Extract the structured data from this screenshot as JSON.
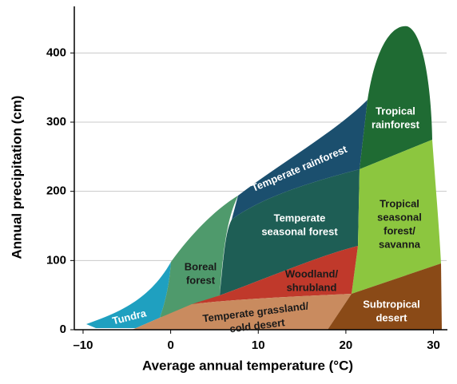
{
  "chart_data": {
    "type": "biome",
    "xlabel": "Average annual temperature (°C)",
    "ylabel": "Annual precipitation (cm)",
    "xlim": [
      -11,
      31.5
    ],
    "xticks": [
      {
        "value": -10,
        "label": "–10"
      },
      0,
      10,
      20,
      30
    ],
    "ylim": [
      0,
      465
    ],
    "yticks": [
      0,
      100,
      200,
      300,
      400
    ],
    "grid": true,
    "regions": [
      {
        "lines": [
          "Tundra"
        ]
      },
      {
        "lines": [
          "Boreal",
          "forest"
        ]
      },
      {
        "lines": [
          "Temperate rainforest"
        ]
      },
      {
        "lines": [
          "Temperate",
          "seasonal forest"
        ]
      },
      {
        "lines": [
          "Tropical",
          "rainforest"
        ]
      },
      {
        "lines": [
          "Tropical",
          "seasonal",
          "forest/",
          "savanna"
        ]
      },
      {
        "lines": [
          "Woodland/",
          "shrubland"
        ]
      },
      {
        "lines": [
          "Temperate grassland/",
          "cold desert"
        ]
      },
      {
        "lines": [
          "Subtropical",
          "desert"
        ]
      }
    ]
  }
}
